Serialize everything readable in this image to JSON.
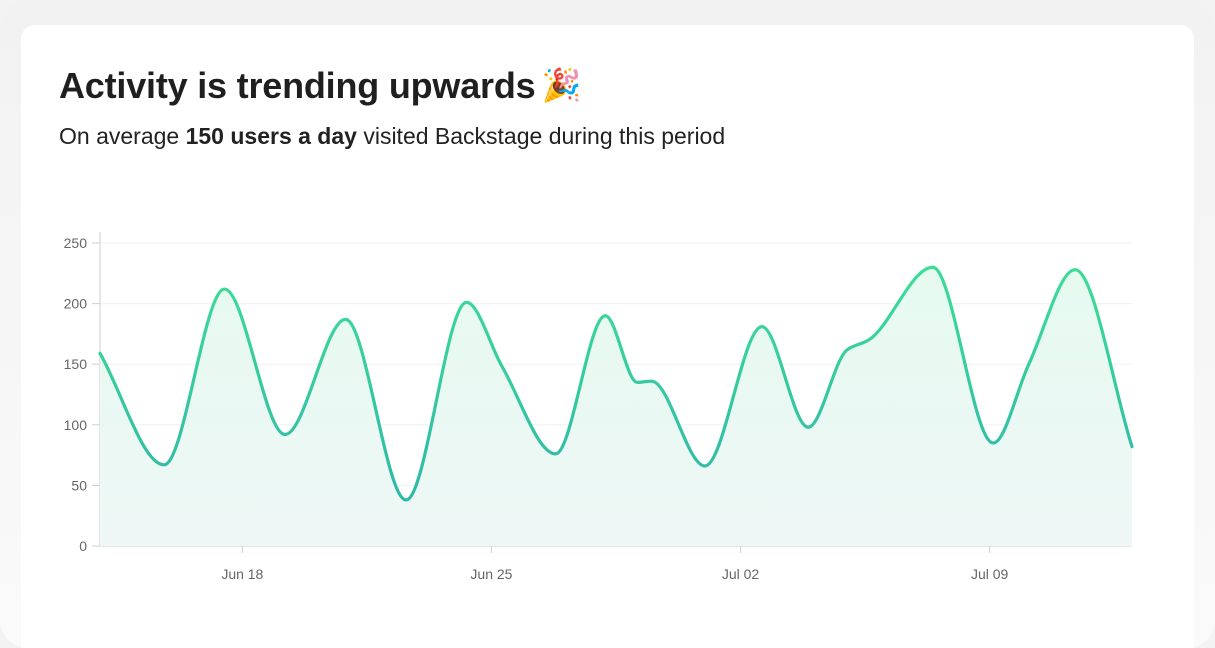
{
  "header": {
    "title": "Activity is trending upwards",
    "title_emoji": "🎉",
    "subtitle_prefix": "On average ",
    "subtitle_bold": "150 users a day",
    "subtitle_suffix": " visited Backstage during this period"
  },
  "colors": {
    "line_top": "#3ddc97",
    "line_bottom": "#2fb8a8",
    "fill_top": "#e6faf0",
    "fill_bottom": "#eef7f6",
    "grid": "#f0f0f0",
    "axis": "#cfcfcf"
  },
  "chart_data": {
    "type": "area",
    "ylim": [
      0,
      250
    ],
    "yticks": [
      0,
      50,
      100,
      150,
      200,
      250
    ],
    "xticks": [
      {
        "day": 4,
        "label": "Jun 18"
      },
      {
        "day": 11,
        "label": "Jun 25"
      },
      {
        "day": 18,
        "label": "Jul 02"
      },
      {
        "day": 25,
        "label": "Jul 09"
      }
    ],
    "x_start_date": "Jun 14",
    "values": [
      159,
      67,
      212,
      92,
      187,
      38,
      201,
      148,
      76,
      190,
      135,
      136,
      66,
      181,
      98,
      162,
      170,
      230,
      85,
      150,
      228,
      82
    ],
    "days": [
      0,
      1.8,
      3.5,
      5.2,
      6.9,
      8.6,
      10.3,
      11.3,
      12.8,
      14.2,
      15.1,
      15.5,
      17.0,
      18.6,
      19.9,
      21.0,
      21.6,
      23.4,
      25.1,
      26.1,
      27.4,
      29.0
    ],
    "grid": true,
    "xlabel": "",
    "ylabel": ""
  }
}
